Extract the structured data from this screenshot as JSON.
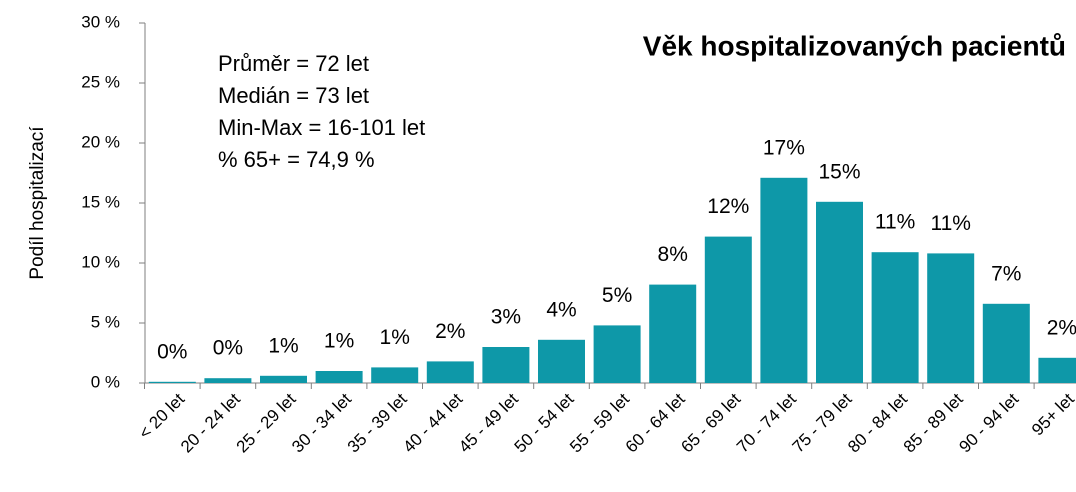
{
  "chart_data": {
    "type": "bar",
    "title": "Věk hospitalizovaných pacientů",
    "y_label": "Podíl hospitalizací",
    "annotations": [
      "Průměr = 72 let",
      "Medián = 73 let",
      "Min-Max = 16-101 let",
      "% 65+ = 74,9 %"
    ],
    "categories": [
      "< 20 let",
      "20 - 24 let",
      "25 - 29 let",
      "30 - 34 let",
      "35 - 39 let",
      "40 - 44 let",
      "45 - 49 let",
      "50 - 54 let",
      "55 - 59 let",
      "60 - 64 let",
      "65 - 69 let",
      "70 - 74 let",
      "75 - 79 let",
      "80 - 84 let",
      "85 - 89 let",
      "90 - 94 let",
      "95+ let"
    ],
    "values": [
      0.1,
      0.4,
      0.6,
      1.0,
      1.3,
      1.8,
      3.0,
      3.6,
      4.8,
      8.2,
      12.2,
      17.1,
      15.1,
      10.9,
      10.8,
      6.6,
      2.1
    ],
    "value_labels": [
      "0%",
      "0%",
      "1%",
      "1%",
      "1%",
      "2%",
      "3%",
      "4%",
      "5%",
      "8%",
      "12%",
      "17%",
      "15%",
      "11%",
      "11%",
      "7%",
      "2%"
    ],
    "color": "#0e98a8",
    "ylim": [
      0,
      30
    ],
    "yticks": [
      {
        "value": 0,
        "label": "0 %"
      },
      {
        "value": 5,
        "label": "5 %"
      },
      {
        "value": 10,
        "label": "10 %"
      },
      {
        "value": 15,
        "label": "15 %"
      },
      {
        "value": 20,
        "label": "20 %"
      },
      {
        "value": 25,
        "label": "25 %"
      },
      {
        "value": 30,
        "label": "30 %"
      }
    ],
    "grid": false
  }
}
